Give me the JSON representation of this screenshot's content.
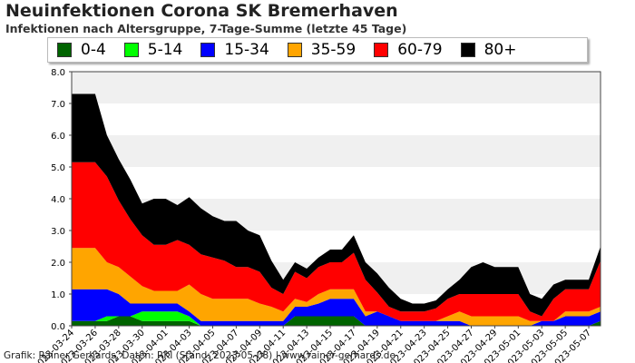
{
  "chart_data": {
    "type": "area",
    "title": "Neuinfektionen Corona SK Bremerhaven",
    "subtitle": "Infektionen nach Altersgruppe, 7-Tage-Summe (letzte 45 Tage)",
    "ylim": [
      0,
      8
    ],
    "yticks": [
      "0.0",
      "1.0",
      "2.0",
      "3.0",
      "4.0",
      "5.0",
      "6.0",
      "7.0",
      "8.0"
    ],
    "grid": "horizontal alternating bands",
    "legend_position": "top",
    "x": [
      "2023-03-24",
      "2023-03-25",
      "2023-03-26",
      "2023-03-27",
      "2023-03-28",
      "2023-03-29",
      "2023-03-30",
      "2023-03-31",
      "2023-04-01",
      "2023-04-02",
      "2023-04-03",
      "2023-04-04",
      "2023-04-05",
      "2023-04-06",
      "2023-04-07",
      "2023-04-08",
      "2023-04-09",
      "2023-04-10",
      "2023-04-11",
      "2023-04-12",
      "2023-04-13",
      "2023-04-14",
      "2023-04-15",
      "2023-04-16",
      "2023-04-17",
      "2023-04-18",
      "2023-04-19",
      "2023-04-20",
      "2023-04-21",
      "2023-04-22",
      "2023-04-23",
      "2023-04-24",
      "2023-04-25",
      "2023-04-26",
      "2023-04-27",
      "2023-04-28",
      "2023-04-29",
      "2023-04-30",
      "2023-05-01",
      "2023-05-02",
      "2023-05-03",
      "2023-05-04",
      "2023-05-05",
      "2023-05-06",
      "2023-05-07",
      "2023-05-08"
    ],
    "xtick_labels": [
      "2023-03-24",
      "2023-03-26",
      "2023-03-28",
      "2023-03-30",
      "2023-04-01",
      "2023-04-03",
      "2023-04-05",
      "2023-04-07",
      "2023-04-09",
      "2023-04-11",
      "2023-04-13",
      "2023-04-15",
      "2023-04-17",
      "2023-04-19",
      "2023-04-21",
      "2023-04-23",
      "2023-04-25",
      "2023-04-27",
      "2023-04-29",
      "2023-05-01",
      "2023-05-03",
      "2023-05-05",
      "2023-05-07"
    ],
    "series": [
      {
        "name": "0-4",
        "color": "#006400",
        "values": [
          0.15,
          0.15,
          0.15,
          0.15,
          0.3,
          0.3,
          0.15,
          0.15,
          0.15,
          0.15,
          0.15,
          0,
          0,
          0,
          0,
          0,
          0,
          0,
          0,
          0.3,
          0.3,
          0.3,
          0.3,
          0.3,
          0.3,
          0,
          0,
          0,
          0,
          0,
          0,
          0,
          0,
          0,
          0,
          0,
          0,
          0,
          0,
          0,
          0,
          0,
          0,
          0,
          0,
          0.15
        ]
      },
      {
        "name": "5-14",
        "color": "#00ff00",
        "values": [
          0,
          0,
          0,
          0.15,
          0,
          0,
          0.3,
          0.3,
          0.3,
          0.3,
          0.15,
          0,
          0,
          0,
          0,
          0,
          0,
          0,
          0,
          0,
          0,
          0,
          0,
          0,
          0,
          0,
          0,
          0,
          0,
          0,
          0,
          0,
          0,
          0,
          0,
          0,
          0,
          0,
          0,
          0,
          0,
          0,
          0,
          0,
          0,
          0
        ]
      },
      {
        "name": "15-34",
        "color": "#0000ff",
        "values": [
          1.0,
          1.0,
          1.0,
          0.85,
          0.7,
          0.4,
          0.25,
          0.25,
          0.25,
          0.25,
          0.15,
          0.15,
          0.15,
          0.15,
          0.15,
          0.15,
          0.15,
          0.15,
          0.15,
          0.3,
          0.3,
          0.4,
          0.55,
          0.55,
          0.55,
          0.3,
          0.45,
          0.3,
          0.15,
          0.15,
          0.15,
          0.15,
          0.15,
          0.15,
          0,
          0,
          0,
          0,
          0,
          0,
          0.15,
          0.15,
          0.3,
          0.3,
          0.3,
          0.3
        ]
      },
      {
        "name": "35-59",
        "color": "#ffa500",
        "values": [
          1.3,
          1.3,
          1.3,
          0.85,
          0.85,
          0.85,
          0.55,
          0.4,
          0.4,
          0.4,
          0.85,
          0.85,
          0.7,
          0.7,
          0.7,
          0.7,
          0.55,
          0.45,
          0.3,
          0.25,
          0.15,
          0.3,
          0.3,
          0.3,
          0.3,
          0.15,
          0,
          0,
          0,
          0,
          0,
          0,
          0.15,
          0.3,
          0.3,
          0.3,
          0.3,
          0.3,
          0.3,
          0.15,
          0,
          0,
          0.15,
          0.15,
          0.15,
          0.15
        ]
      },
      {
        "name": "60-79",
        "color": "#ff0000",
        "values": [
          2.7,
          2.7,
          2.7,
          2.7,
          2.1,
          1.8,
          1.6,
          1.45,
          1.45,
          1.6,
          1.25,
          1.25,
          1.3,
          1.2,
          1.0,
          1.0,
          1.0,
          0.6,
          0.55,
          0.85,
          0.75,
          0.85,
          0.85,
          0.85,
          1.15,
          1.0,
          0.6,
          0.3,
          0.3,
          0.3,
          0.3,
          0.4,
          0.55,
          0.55,
          0.7,
          0.7,
          0.7,
          0.7,
          0.7,
          0.3,
          0.15,
          0.7,
          0.7,
          0.7,
          0.7,
          1.45
        ]
      },
      {
        "name": "80+",
        "color": "#000000",
        "values": [
          2.15,
          2.15,
          2.15,
          1.3,
          1.3,
          1.25,
          1.0,
          1.45,
          1.45,
          1.1,
          1.5,
          1.45,
          1.3,
          1.25,
          1.45,
          1.15,
          1.15,
          0.85,
          0.45,
          0.3,
          0.3,
          0.3,
          0.4,
          0.4,
          0.55,
          0.55,
          0.6,
          0.6,
          0.4,
          0.25,
          0.25,
          0.25,
          0.3,
          0.45,
          0.85,
          1.0,
          0.85,
          0.85,
          0.85,
          0.55,
          0.55,
          0.45,
          0.3,
          0.3,
          0.3,
          0.45
        ]
      }
    ]
  },
  "footer": "Grafik: Rainer Gerhards, Daten: RKI (Stand: 2023-05-08) | www.rainer-gerhards.de"
}
